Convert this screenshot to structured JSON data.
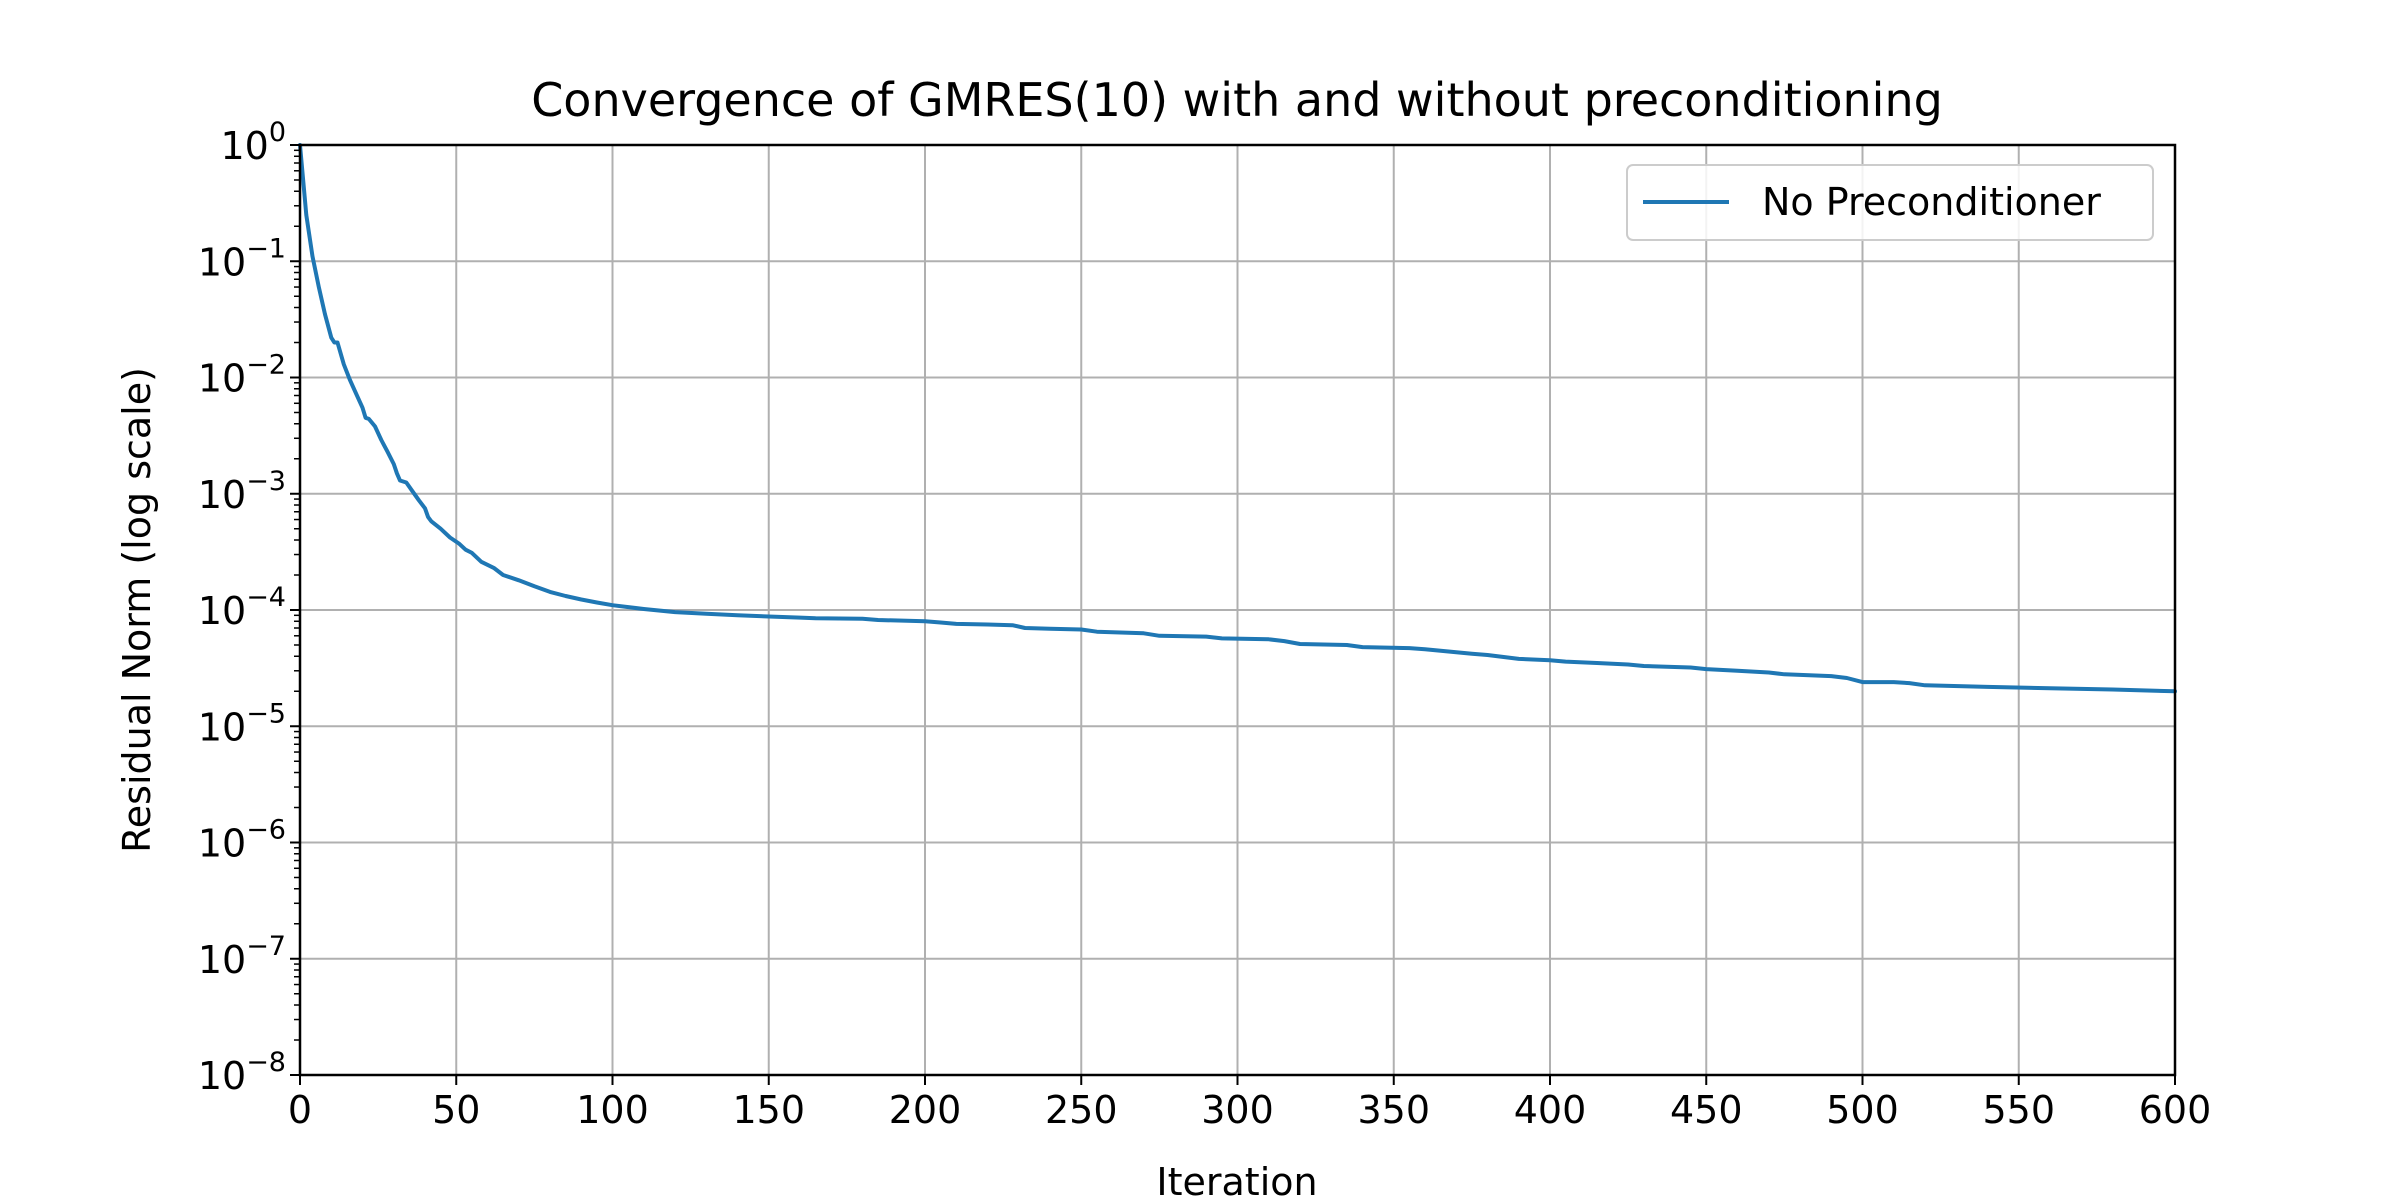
{
  "chart_data": {
    "type": "line",
    "title": "Convergence of GMRES(10) with and without preconditioning",
    "xlabel": "Iteration",
    "ylabel": "Residual Norm (log scale)",
    "xlim": [
      0,
      600
    ],
    "ylim": [
      1e-08,
      1
    ],
    "yscale": "log",
    "grid": true,
    "legend_position": "top-right",
    "x_ticks": [
      "0",
      "50",
      "100",
      "150",
      "200",
      "250",
      "300",
      "350",
      "400",
      "450",
      "500",
      "550",
      "600"
    ],
    "y_ticks": [
      {
        "base": "10",
        "exp": "0"
      },
      {
        "base": "10",
        "exp": "−1"
      },
      {
        "base": "10",
        "exp": "−2"
      },
      {
        "base": "10",
        "exp": "−3"
      },
      {
        "base": "10",
        "exp": "−4"
      },
      {
        "base": "10",
        "exp": "−5"
      },
      {
        "base": "10",
        "exp": "−6"
      },
      {
        "base": "10",
        "exp": "−7"
      },
      {
        "base": "10",
        "exp": "−8"
      }
    ],
    "series": [
      {
        "name": "No Preconditioner",
        "color": "#1f77b4",
        "x": [
          0,
          2,
          4,
          6,
          8,
          10,
          11,
          12,
          14,
          16,
          18,
          20,
          21,
          22,
          24,
          26,
          28,
          30,
          31,
          32,
          34,
          36,
          38,
          40,
          41,
          42,
          45,
          48,
          51,
          53,
          55,
          58,
          62,
          65,
          70,
          75,
          80,
          85,
          90,
          95,
          100,
          110,
          120,
          130,
          140,
          150,
          160,
          165,
          180,
          185,
          200,
          205,
          210,
          220,
          228,
          232,
          240,
          250,
          255,
          270,
          275,
          290,
          295,
          310,
          315,
          320,
          335,
          340,
          355,
          360,
          375,
          380,
          390,
          400,
          405,
          415,
          425,
          430,
          445,
          450,
          460,
          470,
          475,
          490,
          495,
          500,
          510,
          515,
          520,
          540,
          560,
          580,
          600
        ],
        "y": [
          1.0,
          0.25,
          0.11,
          0.06,
          0.035,
          0.022,
          0.02,
          0.02,
          0.013,
          0.0095,
          0.0072,
          0.0055,
          0.0045,
          0.0044,
          0.0038,
          0.0029,
          0.0023,
          0.0018,
          0.0015,
          0.0013,
          0.00125,
          0.00105,
          0.00088,
          0.00075,
          0.00063,
          0.00058,
          0.0005,
          0.00042,
          0.00037,
          0.00033,
          0.00031,
          0.00026,
          0.00023,
          0.0002,
          0.00018,
          0.00016,
          0.000143,
          0.000132,
          0.000123,
          0.000116,
          0.00011,
          0.000102,
          9.6e-05,
          9.3e-05,
          9e-05,
          8.8e-05,
          8.6e-05,
          8.5e-05,
          8.4e-05,
          8.2e-05,
          8e-05,
          7.8e-05,
          7.6e-05,
          7.5e-05,
          7.4e-05,
          7e-05,
          6.9e-05,
          6.8e-05,
          6.5e-05,
          6.3e-05,
          6e-05,
          5.9e-05,
          5.7e-05,
          5.6e-05,
          5.4e-05,
          5.1e-05,
          5e-05,
          4.8e-05,
          4.7e-05,
          4.6e-05,
          4.2e-05,
          4.1e-05,
          3.8e-05,
          3.7e-05,
          3.6e-05,
          3.5e-05,
          3.4e-05,
          3.3e-05,
          3.2e-05,
          3.1e-05,
          3e-05,
          2.9e-05,
          2.8e-05,
          2.7e-05,
          2.6e-05,
          2.4e-05,
          2.4e-05,
          2.35e-05,
          2.25e-05,
          2.18e-05,
          2.12e-05,
          2.07e-05,
          2e-05
        ]
      }
    ]
  }
}
